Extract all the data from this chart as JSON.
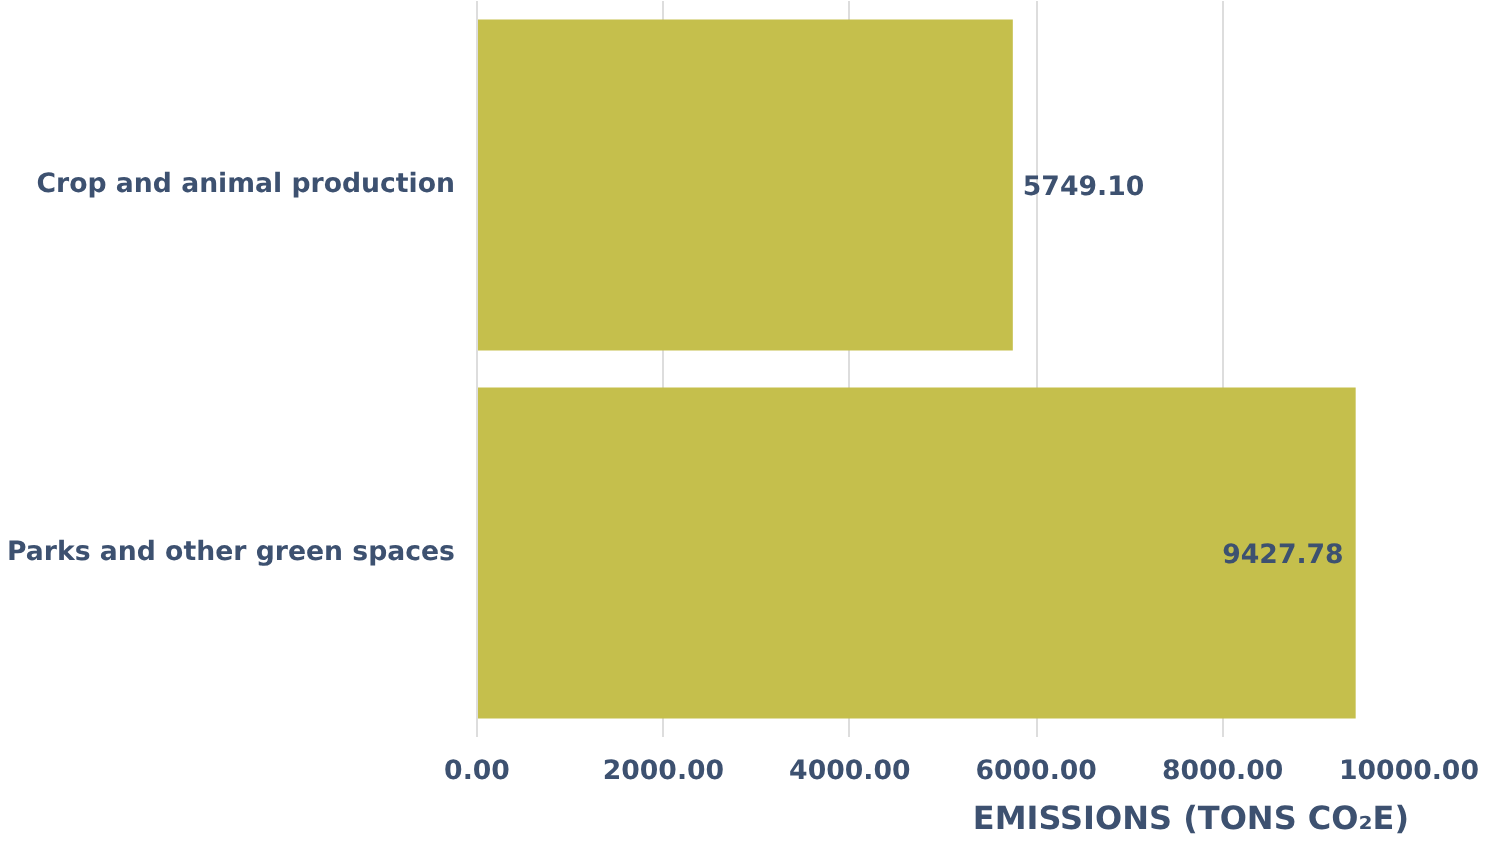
{
  "chart_data": {
    "type": "bar",
    "orientation": "horizontal",
    "categories": [
      "Crop and animal production",
      "Parks and other green spaces"
    ],
    "values": [
      5749.1,
      9427.78
    ],
    "color": "#c5bf4c",
    "value_labels": [
      "5749.10",
      "9427.78"
    ],
    "xlim": [
      0,
      10000
    ],
    "xticks": [
      {
        "value": 0,
        "label": "0.00"
      },
      {
        "value": 2000,
        "label": "2000.00"
      },
      {
        "value": 4000,
        "label": "4000.00"
      },
      {
        "value": 6000,
        "label": "6000.00"
      },
      {
        "value": 8000,
        "label": "8000.00"
      },
      {
        "value": 10000,
        "label": "10000.00"
      }
    ],
    "xlabel": "EMISSIONS (TONS CO₂E)",
    "grid": "x"
  }
}
